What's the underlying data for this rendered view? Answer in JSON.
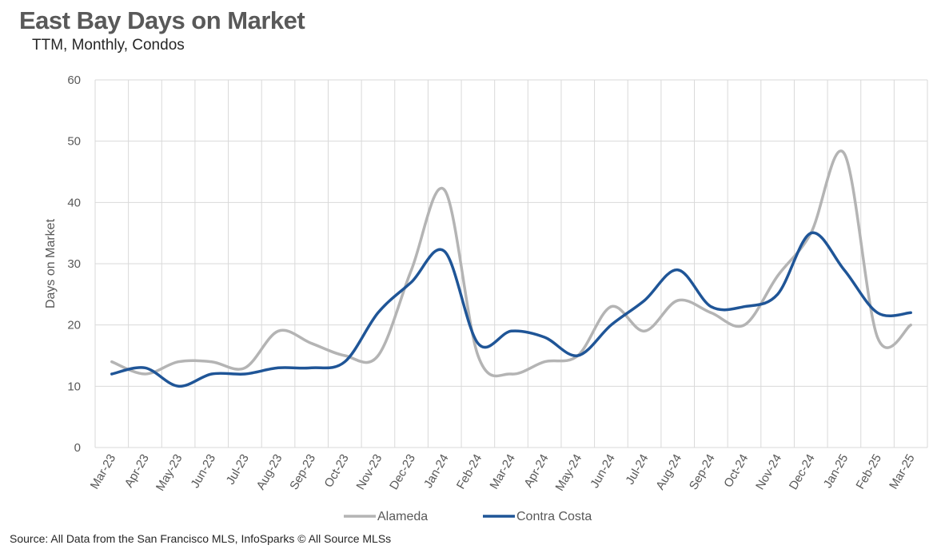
{
  "header": {
    "title": "East Bay Days on Market",
    "subtitle": "TTM, Monthly, Condos"
  },
  "footer": {
    "source": "Source: All Data from the San Francisco MLS, InfoSparks © All Source MLSs"
  },
  "chart_data": {
    "type": "line",
    "title": "East Bay Days on Market",
    "subtitle": "TTM, Monthly, Condos",
    "xlabel": "",
    "ylabel": "Days on Market",
    "ylim": [
      0,
      60
    ],
    "yticks": [
      0,
      10,
      20,
      30,
      40,
      50,
      60
    ],
    "grid": true,
    "legend_position": "bottom",
    "categories": [
      "Mar-23",
      "Apr-23",
      "May-23",
      "Jun-23",
      "Jul-23",
      "Aug-23",
      "Sep-23",
      "Oct-23",
      "Nov-23",
      "Dec-23",
      "Jan-24",
      "Feb-24",
      "Mar-24",
      "Apr-24",
      "May-24",
      "Jun-24",
      "Jul-24",
      "Aug-24",
      "Sep-24",
      "Oct-24",
      "Nov-24",
      "Dec-24",
      "Jan-25",
      "Feb-25",
      "Mar-25"
    ],
    "series": [
      {
        "name": "Alameda",
        "color": "#b4b4b4",
        "values": [
          14,
          12,
          14,
          14,
          13,
          19,
          17,
          15,
          15,
          29,
          42,
          15,
          12,
          14,
          15,
          23,
          19,
          24,
          22,
          20,
          28,
          35,
          48,
          18,
          20
        ]
      },
      {
        "name": "Contra Costa",
        "color": "#1f5597",
        "values": [
          12,
          13,
          10,
          12,
          12,
          13,
          13,
          14,
          22,
          27,
          32,
          17,
          19,
          18,
          15,
          20,
          24,
          29,
          23,
          23,
          25,
          35,
          29,
          22,
          22
        ]
      }
    ]
  }
}
